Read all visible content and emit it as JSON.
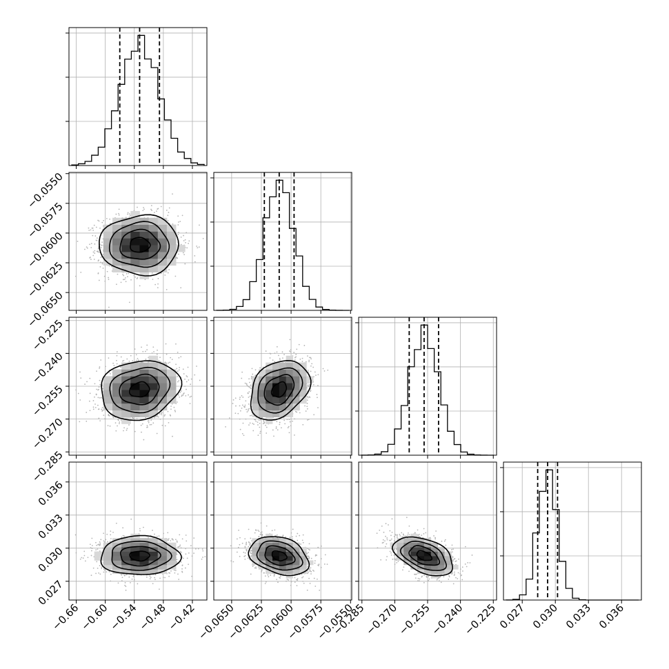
{
  "chart_data": {
    "type": "corner",
    "title": "",
    "parameters": [
      {
        "range": [
          -0.675,
          -0.39
        ],
        "ticks": [
          "−0.66",
          "−0.60",
          "−0.54",
          "−0.48",
          "−0.42"
        ],
        "tick_values": [
          -0.66,
          -0.6,
          -0.54,
          -0.48,
          -0.42
        ],
        "mean": -0.529,
        "std": 0.041,
        "quantiles": [
          -0.57,
          -0.529,
          -0.488
        ]
      },
      {
        "range": [
          -0.0665,
          -0.0549
        ],
        "ticks": [
          "−0.0650",
          "−0.0625",
          "−0.0600",
          "−0.0575",
          "−0.0550"
        ],
        "tick_values": [
          -0.065,
          -0.0625,
          -0.06,
          -0.0575,
          -0.055
        ],
        "mean": -0.061,
        "std": 0.00125,
        "quantiles": [
          -0.06225,
          -0.061,
          -0.05975
        ]
      },
      {
        "range": [
          -0.2865,
          -0.2235
        ],
        "ticks": [
          "−0.285",
          "−0.270",
          "−0.255",
          "−0.240",
          "−0.225"
        ],
        "tick_values": [
          -0.285,
          -0.27,
          -0.255,
          -0.24,
          -0.225
        ],
        "mean": -0.2566,
        "std": 0.0068,
        "quantiles": [
          -0.2634,
          -0.2566,
          -0.25
        ]
      },
      {
        "range": [
          0.0253,
          0.0378
        ],
        "ticks": [
          "0.027",
          "0.030",
          "0.033",
          "0.036"
        ],
        "tick_values": [
          0.027,
          0.03,
          0.033,
          0.036
        ],
        "mean": 0.0293,
        "std": 0.00088,
        "quantiles": [
          0.0284,
          0.0293,
          0.0302
        ]
      }
    ],
    "correlations": {
      "0-1": 0.0,
      "0-2": 0.15,
      "0-3": 0.0,
      "1-2": 0.3,
      "1-3": -0.3,
      "2-3": -0.45
    },
    "histogram_bins": 20,
    "contour_levels": 4,
    "grid": true,
    "colors": {
      "hist_line": "#000000",
      "quantile_line": "#000000",
      "scatter": "#b4b4b4",
      "density_dark": "#000000",
      "grid": "#b0b0b0"
    }
  }
}
